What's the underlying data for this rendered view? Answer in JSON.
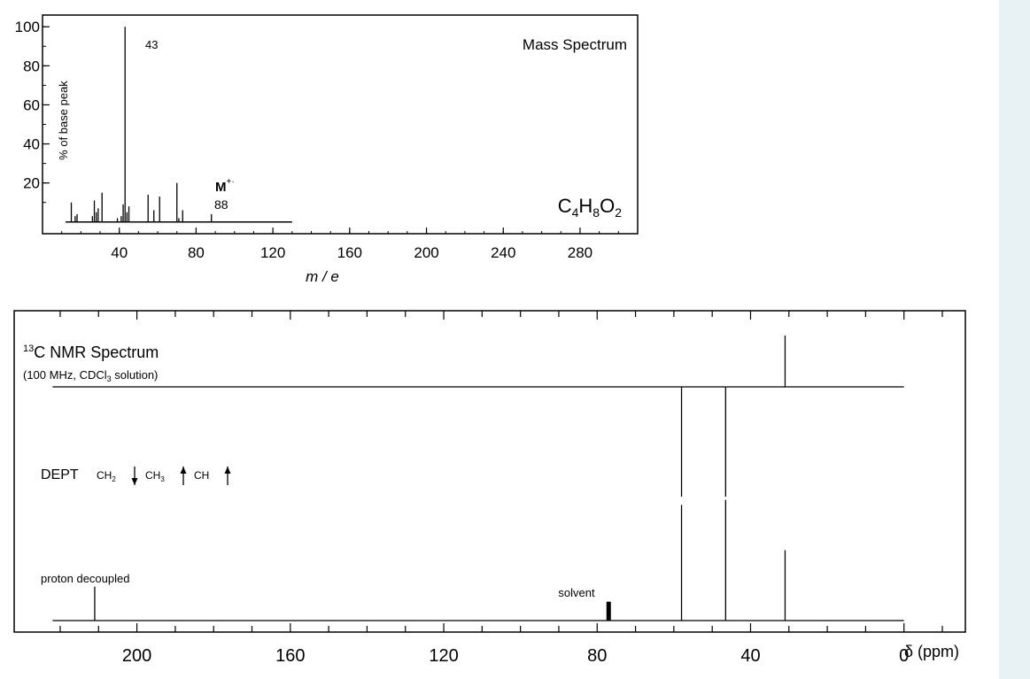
{
  "chart_data": [
    {
      "type": "bar",
      "title": "Mass Spectrum",
      "formula": {
        "c": "C",
        "c_n": "4",
        "h": "H",
        "h_n": "8",
        "o": "O",
        "o_n": "2"
      },
      "xlabel": "m / e",
      "ylabel": "% of base peak",
      "xlim": [
        0,
        310
      ],
      "ylim": [
        -6,
        106
      ],
      "xticks": [
        40,
        80,
        120,
        160,
        200,
        240,
        280
      ],
      "yticks": [
        20,
        40,
        60,
        80,
        100
      ],
      "baseline_range": [
        12,
        130
      ],
      "peaks": [
        {
          "x": 15,
          "y": 10
        },
        {
          "x": 17,
          "y": 3
        },
        {
          "x": 18,
          "y": 4
        },
        {
          "x": 26,
          "y": 3
        },
        {
          "x": 27,
          "y": 11
        },
        {
          "x": 28,
          "y": 5
        },
        {
          "x": 29,
          "y": 7
        },
        {
          "x": 31,
          "y": 15
        },
        {
          "x": 39,
          "y": 2
        },
        {
          "x": 41,
          "y": 3
        },
        {
          "x": 42,
          "y": 9
        },
        {
          "x": 43,
          "y": 100
        },
        {
          "x": 44,
          "y": 5
        },
        {
          "x": 45,
          "y": 8
        },
        {
          "x": 55,
          "y": 14
        },
        {
          "x": 58,
          "y": 6
        },
        {
          "x": 61,
          "y": 13
        },
        {
          "x": 70,
          "y": 20
        },
        {
          "x": 71,
          "y": 2
        },
        {
          "x": 73,
          "y": 6
        },
        {
          "x": 88,
          "y": 4
        }
      ],
      "annotations": {
        "base_peak": "43",
        "molecular_ion_symbol": "M",
        "molecular_ion_sup": "+·",
        "molecular_ion_mz": "88"
      }
    },
    {
      "type": "line",
      "title_sup": "13",
      "title": "C NMR Spectrum",
      "subtitle_pre": "(100 MHz, CDCl",
      "subtitle_sub": "3",
      "subtitle_post": " solution)",
      "xlabel": "δ (ppm)",
      "xlim": [
        232,
        -16
      ],
      "xticks": [
        200,
        160,
        120,
        80,
        40,
        0
      ],
      "dept_label": "DEPT",
      "dept_legend": [
        {
          "label": "CH",
          "sub": "2",
          "direction": "down"
        },
        {
          "label": "CH",
          "sub": "3",
          "direction": "up"
        },
        {
          "label": "CH",
          "sub": "",
          "direction": "up"
        }
      ],
      "proton_decoupled_label": "proton decoupled",
      "solvent_label": "solvent",
      "baseline_range": [
        222,
        0
      ],
      "top_trace_peaks": [
        {
          "x": 31,
          "y": 1.0
        }
      ],
      "dept_trace_peaks": [
        {
          "x": 58,
          "y": -1.0
        },
        {
          "x": 46.5,
          "y": -1.0
        }
      ],
      "decoupled_peaks": [
        {
          "x": 211,
          "y": 0.27
        },
        {
          "x": 77,
          "y": 0.15,
          "solvent": true
        },
        {
          "x": 58,
          "y": 0.92
        },
        {
          "x": 46.5,
          "y": 0.96
        },
        {
          "x": 31,
          "y": 0.56
        }
      ]
    }
  ]
}
